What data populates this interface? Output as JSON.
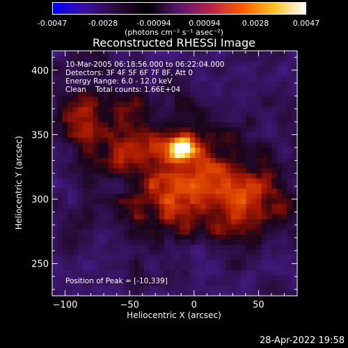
{
  "colorbar": {
    "colors": [
      "#0000ff",
      "#3b0fa0",
      "#2a0a3a",
      "#000000",
      "#5a1870",
      "#b5234a",
      "#ff5a00",
      "#ffc020",
      "#ffffff"
    ],
    "ticks": [
      "-0.0047",
      "-0.0028",
      "-0.00094",
      "0.00094",
      "0.0028",
      "0.0047"
    ],
    "unit_label": "(photons cm⁻² s⁻¹ asec⁻²)"
  },
  "chart_data": {
    "type": "heatmap",
    "title": "Reconstructed RHESSI Image",
    "xlabel": "Heliocentric X (arcsec)",
    "ylabel": "Heliocentric Y (arcsec)",
    "xlim": [
      -110,
      80
    ],
    "ylim": [
      225,
      415
    ],
    "xticks": [
      -100,
      -50,
      0,
      50
    ],
    "yticks": [
      250,
      300,
      350,
      400
    ],
    "xtick_labels": [
      "−100",
      "−50",
      "0",
      "50"
    ],
    "ytick_labels": [
      "250",
      "300",
      "350",
      "400"
    ],
    "peak": [
      -10,
      339
    ],
    "annotation_lines": [
      "10-Mar-2005 06:18:56.000 to 06:22:04.000",
      "Detectors: 3F 4F 5F 6F 7F 8F, Att 0",
      "Energy Range: 6.0 - 12.0 keV",
      "Clean    Total counts: 1.66E+04"
    ],
    "peak_label": "Position of Peak = [-10,339]"
  },
  "timestamp": "28-Apr-2022 19:58"
}
